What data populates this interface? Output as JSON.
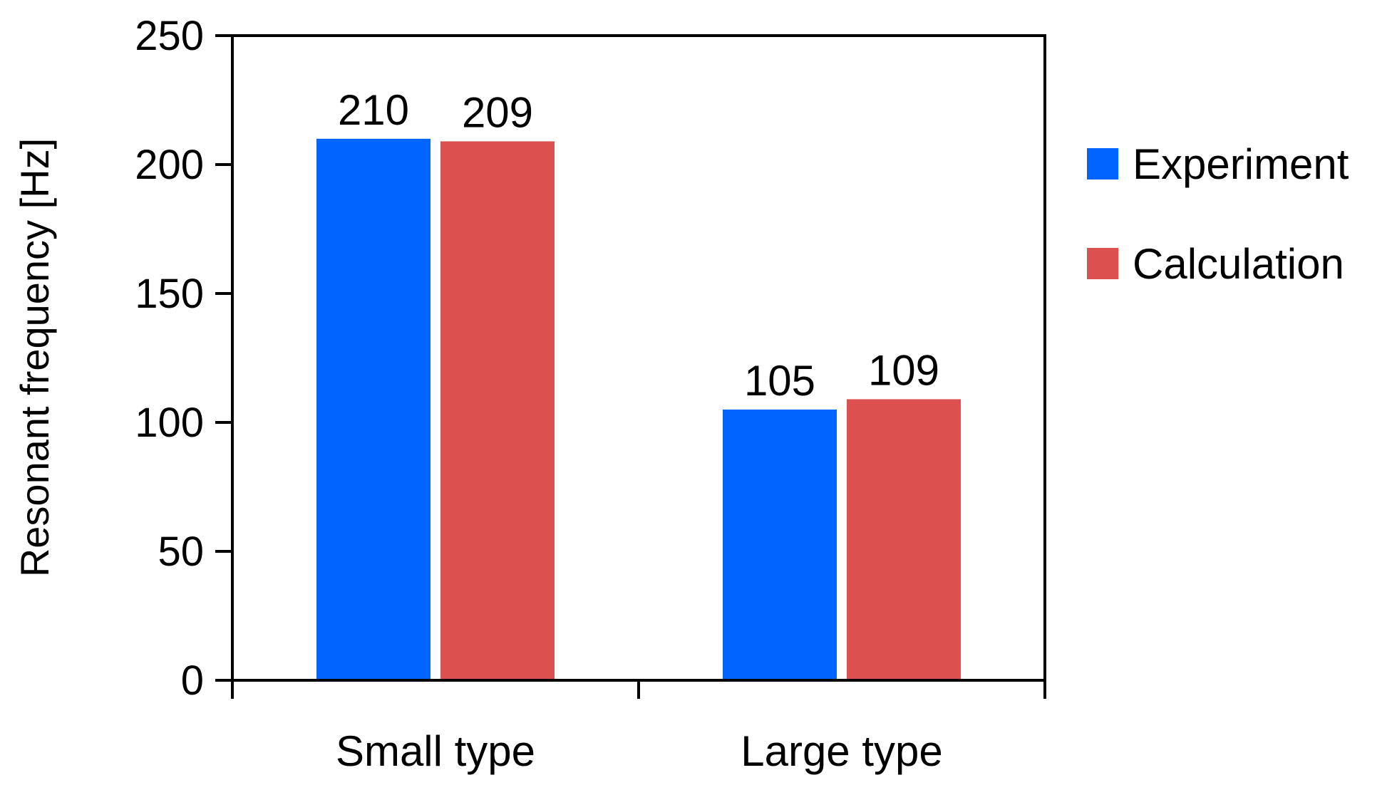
{
  "chart_data": {
    "type": "bar",
    "title": "",
    "xlabel": "",
    "ylabel": "Resonant frequency [Hz]",
    "ylim": [
      0,
      250
    ],
    "yticks": [
      0,
      50,
      100,
      150,
      200,
      250
    ],
    "grid": false,
    "legend_position": "right",
    "categories": [
      "Small type",
      "Large type"
    ],
    "series": [
      {
        "name": "Experiment",
        "color": "#0064FF",
        "values": [
          210,
          105
        ]
      },
      {
        "name": "Calculation",
        "color": "#DC5050",
        "values": [
          209,
          109
        ]
      }
    ],
    "data_labels": true
  }
}
